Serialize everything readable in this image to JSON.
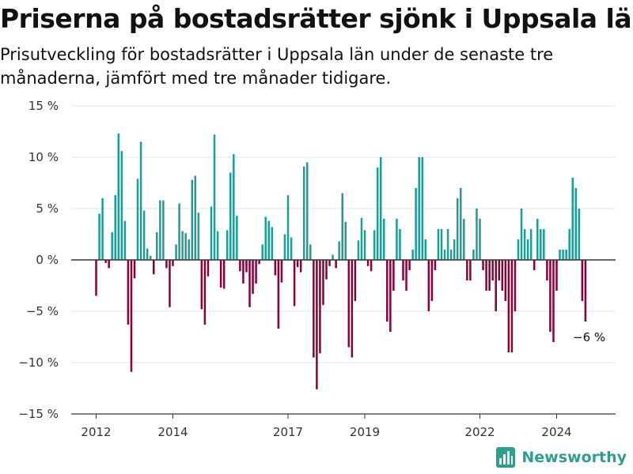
{
  "header": {
    "title": "Priserna på bostadsrätter sjönk i Uppsala län",
    "subtitle": "Prisutveckling för bostadsrätter i Uppsala län under de senaste tre månaderna, jämfört med tre månader tidigare."
  },
  "colors": {
    "positive": "#1a9e96",
    "negative": "#8c0037",
    "grid": "#e3e3e3",
    "axis": "#333333"
  },
  "brand": {
    "name": "Newsworthy",
    "logo_icon": "bar-chart-logo-icon"
  },
  "chart_data": {
    "type": "bar",
    "title": "Priserna på bostadsrätter sjönk i Uppsala län",
    "subtitle": "Prisutveckling för bostadsrätter i Uppsala län under de senaste tre månaderna, jämfört med tre månader tidigare.",
    "ylim": [
      -15,
      15
    ],
    "y_ticks": [
      15,
      10,
      5,
      0,
      -5,
      -10,
      -15
    ],
    "y_tick_labels": [
      "15 %",
      "10 %",
      "5 %",
      "0 %",
      "−5 %",
      "−10 %",
      "−15 %"
    ],
    "x_ticks": [
      2012,
      2014,
      2017,
      2019,
      2022,
      2024
    ],
    "x_tick_labels": [
      "2012",
      "2014",
      "2017",
      "2019",
      "2022",
      "2024"
    ],
    "grid": true,
    "positive_color": "#1a9e96",
    "negative_color": "#8c0037",
    "annotation": "−6 %",
    "x_start": "2012-01",
    "frequency": "monthly",
    "values": [
      -3.5,
      4.5,
      6.0,
      -0.3,
      -0.8,
      2.7,
      6.3,
      12.3,
      10.6,
      3.8,
      -6.3,
      -10.9,
      -1.8,
      7.9,
      11.5,
      4.8,
      1.1,
      0.4,
      -1.4,
      2.7,
      5.8,
      5.8,
      -0.8,
      -4.6,
      -0.6,
      1.5,
      5.5,
      2.8,
      2.6,
      2.0,
      7.8,
      8.2,
      4.6,
      -4.8,
      -6.3,
      -1.6,
      5.2,
      12.2,
      2.8,
      -2.7,
      -2.8,
      2.9,
      8.5,
      10.3,
      4.3,
      -1.1,
      -2.3,
      -1.2,
      -4.6,
      -3.3,
      -2.3,
      -0.4,
      1.5,
      4.2,
      3.8,
      3.2,
      -1.5,
      -6.7,
      -2.2,
      2.5,
      6.3,
      2.2,
      -4.5,
      -0.7,
      -1.2,
      9.1,
      9.5,
      1.5,
      -9.5,
      -12.6,
      -9.1,
      -4.4,
      -1.9,
      -0.6,
      0.5,
      -0.8,
      1.8,
      6.5,
      3.7,
      -8.5,
      -9.5,
      -4.0,
      1.9,
      4.1,
      2.9,
      -0.6,
      -1.1,
      2.9,
      9.0,
      10.0,
      4.0,
      -6.0,
      -7.0,
      -3.0,
      4.0,
      3.0,
      -2.0,
      -3.0,
      -1.0,
      1.0,
      7.0,
      10.0,
      10.0,
      2.0,
      -5.0,
      -4.0,
      -1.0,
      3.0,
      3.0,
      1.0,
      3.0,
      1.0,
      2.0,
      6.0,
      7.0,
      4.0,
      -2.0,
      -2.0,
      1.0,
      5.0,
      4.0,
      -1.0,
      -3.0,
      -3.0,
      -2.0,
      -5.0,
      -2.0,
      -3.0,
      -4.0,
      -9.0,
      -9.0,
      -5.0,
      2.0,
      5.0,
      3.0,
      2.0,
      3.0,
      -1.0,
      4.0,
      3.0,
      3.0,
      -2.0,
      -7.0,
      -8.0,
      -3.0,
      1.0,
      1.0,
      1.0,
      3.0,
      8.0,
      7.0,
      5.0,
      -4.0,
      -6.0
    ]
  }
}
